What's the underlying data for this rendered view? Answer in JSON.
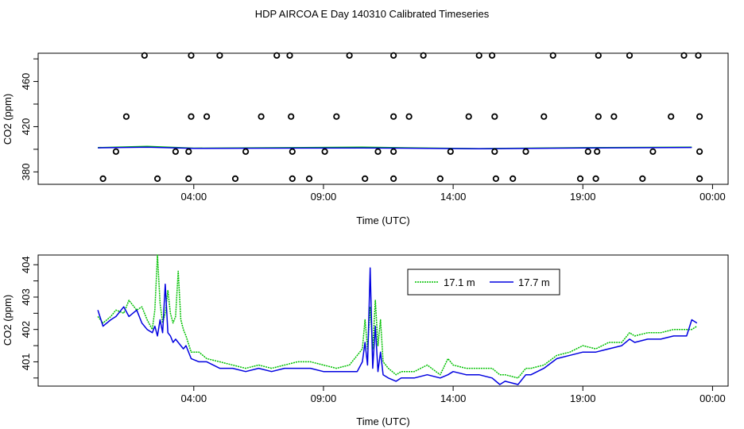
{
  "figure_title": "HDP AIRCOA E  Day 140310  Calibrated Timeseries",
  "colors": {
    "green": "#00c000",
    "blue": "#0000e0",
    "axis": "#000000"
  },
  "chart_data": [
    {
      "type": "scatter",
      "panel": "top",
      "xlabel": "Time (UTC)",
      "ylabel": "CO2 (ppm)",
      "xlim": [
        -2.0,
        24.6
      ],
      "ylim": [
        369,
        485
      ],
      "x_ticks": [
        4,
        9,
        14,
        19,
        24
      ],
      "x_tick_labels": [
        "04:00",
        "09:00",
        "14:00",
        "19:00",
        "00:00"
      ],
      "y_ticks": [
        380,
        420,
        460
      ],
      "y_tick_labels": [
        "380",
        "420",
        "460"
      ],
      "grid": false,
      "points": {
        "x": [
          2.1,
          3.9,
          5.0,
          7.2,
          7.7,
          10.0,
          11.7,
          12.85,
          15.0,
          15.5,
          17.85,
          19.6,
          20.8,
          22.9,
          23.45,
          1.4,
          3.9,
          4.5,
          6.6,
          7.75,
          9.5,
          11.7,
          12.3,
          14.6,
          15.6,
          17.5,
          19.6,
          20.2,
          22.4,
          23.5,
          1.0,
          3.3,
          3.8,
          6.0,
          7.8,
          9.05,
          11.1,
          11.7,
          13.9,
          15.6,
          16.8,
          19.2,
          19.55,
          21.7,
          23.5,
          0.5,
          2.6,
          3.8,
          5.6,
          7.8,
          8.45,
          10.6,
          11.7,
          13.5,
          15.65,
          16.3,
          18.9,
          19.5,
          21.3,
          23.5
        ],
        "y": [
          483,
          483,
          483,
          483,
          483,
          483,
          483,
          483,
          483,
          483,
          483,
          483,
          483,
          483,
          483,
          429,
          429,
          429,
          429,
          429,
          429,
          429,
          429,
          429,
          429,
          429,
          429,
          429,
          429,
          429,
          398,
          398,
          398,
          398,
          398,
          398,
          398,
          398,
          398,
          398,
          398,
          398,
          398,
          398,
          398,
          374,
          374,
          374,
          374,
          374,
          374,
          374,
          374,
          374,
          374,
          374,
          374,
          374,
          374,
          374
        ]
      },
      "series": [
        {
          "color": "#00c000",
          "x": [
            0.3,
            2.2,
            4.0,
            10.5,
            15.0,
            19.0,
            23.2
          ],
          "y": [
            401.5,
            402.5,
            401.0,
            401.8,
            400.6,
            401.4,
            401.8
          ]
        },
        {
          "color": "#0000e0",
          "x": [
            0.3,
            2.2,
            4.0,
            10.5,
            15.0,
            19.0,
            23.2
          ],
          "y": [
            401.3,
            401.8,
            400.8,
            401.2,
            400.5,
            401.2,
            401.6
          ]
        }
      ]
    },
    {
      "type": "line",
      "panel": "bottom",
      "xlabel": "Time (UTC)",
      "ylabel": "CO2 (ppm)",
      "xlim": [
        -2.0,
        24.6
      ],
      "ylim": [
        400.25,
        404.3
      ],
      "x_ticks": [
        4,
        9,
        14,
        19,
        24
      ],
      "x_tick_labels": [
        "04:00",
        "09:00",
        "14:00",
        "19:00",
        "00:00"
      ],
      "y_ticks": [
        401,
        402,
        403,
        404
      ],
      "y_tick_labels": [
        "401",
        "402",
        "403",
        "404"
      ],
      "grid": false,
      "legend_position": "top-right",
      "series": [
        {
          "name": "17.1 m",
          "color": "#00c000",
          "x": [
            0.3,
            0.5,
            0.8,
            1.0,
            1.3,
            1.5,
            1.8,
            2.0,
            2.2,
            2.4,
            2.5,
            2.6,
            2.7,
            2.8,
            2.9,
            3.0,
            3.1,
            3.2,
            3.3,
            3.4,
            3.5,
            3.6,
            3.7,
            3.9,
            4.2,
            4.5,
            5.0,
            5.5,
            6.0,
            6.5,
            7.0,
            7.5,
            8.0,
            8.5,
            9.0,
            9.5,
            10.0,
            10.3,
            10.5,
            10.6,
            10.7,
            10.8,
            10.9,
            11.0,
            11.1,
            11.2,
            11.3,
            11.5,
            11.8,
            12.0,
            12.5,
            13.0,
            13.5,
            13.8,
            14.0,
            14.5,
            15.0,
            15.5,
            15.8,
            16.0,
            16.5,
            16.8,
            17.0,
            17.5,
            18.0,
            18.5,
            19.0,
            19.5,
            20.0,
            20.5,
            20.8,
            21.0,
            21.5,
            22.0,
            22.5,
            23.0,
            23.2,
            23.4
          ],
          "y": [
            402.4,
            402.2,
            402.4,
            402.6,
            402.5,
            402.9,
            402.6,
            402.7,
            402.3,
            402.0,
            402.6,
            404.3,
            402.8,
            402.2,
            402.5,
            403.2,
            402.5,
            402.2,
            402.4,
            403.8,
            402.3,
            402.0,
            401.8,
            401.3,
            401.3,
            401.1,
            401.0,
            400.9,
            400.8,
            400.9,
            400.8,
            400.9,
            401.0,
            401.0,
            400.9,
            400.8,
            400.9,
            401.2,
            401.4,
            402.3,
            401.4,
            402.7,
            401.4,
            402.9,
            401.5,
            402.3,
            401.0,
            400.8,
            400.6,
            400.7,
            400.7,
            400.9,
            400.6,
            401.1,
            400.9,
            400.8,
            400.8,
            400.8,
            400.6,
            400.6,
            400.5,
            400.8,
            400.8,
            400.9,
            401.2,
            401.3,
            401.5,
            401.4,
            401.6,
            401.6,
            401.9,
            401.8,
            401.9,
            401.9,
            402.0,
            402.0,
            402.0,
            402.1
          ]
        },
        {
          "name": "17.7 m",
          "color": "#0000e0",
          "x": [
            0.3,
            0.5,
            0.8,
            1.0,
            1.3,
            1.5,
            1.8,
            2.0,
            2.2,
            2.4,
            2.5,
            2.6,
            2.7,
            2.8,
            2.9,
            3.0,
            3.1,
            3.2,
            3.3,
            3.4,
            3.5,
            3.6,
            3.7,
            3.9,
            4.2,
            4.5,
            5.0,
            5.5,
            6.0,
            6.5,
            7.0,
            7.5,
            8.0,
            8.5,
            9.0,
            9.5,
            10.0,
            10.3,
            10.5,
            10.6,
            10.7,
            10.8,
            10.9,
            11.0,
            11.1,
            11.2,
            11.3,
            11.5,
            11.8,
            12.0,
            12.5,
            13.0,
            13.5,
            13.8,
            14.0,
            14.5,
            15.0,
            15.5,
            15.8,
            16.0,
            16.5,
            16.8,
            17.0,
            17.5,
            18.0,
            18.5,
            19.0,
            19.5,
            20.0,
            20.5,
            20.8,
            21.0,
            21.5,
            22.0,
            22.5,
            23.0,
            23.2,
            23.4
          ],
          "y": [
            402.6,
            402.1,
            402.3,
            402.4,
            402.7,
            402.4,
            402.6,
            402.2,
            402.0,
            401.9,
            402.1,
            401.8,
            402.3,
            401.9,
            403.4,
            401.9,
            401.8,
            401.6,
            401.7,
            401.6,
            401.5,
            401.4,
            401.5,
            401.1,
            401.0,
            401.0,
            400.8,
            400.8,
            400.7,
            400.8,
            400.7,
            400.8,
            400.8,
            400.8,
            400.7,
            400.7,
            400.7,
            400.7,
            401.0,
            401.6,
            400.9,
            403.9,
            400.8,
            402.1,
            400.7,
            401.3,
            400.6,
            400.5,
            400.4,
            400.5,
            400.5,
            400.6,
            400.5,
            400.6,
            400.7,
            400.6,
            400.6,
            400.5,
            400.3,
            400.4,
            400.3,
            400.6,
            400.6,
            400.8,
            401.1,
            401.2,
            401.3,
            401.3,
            401.4,
            401.5,
            401.7,
            401.6,
            401.7,
            401.7,
            401.8,
            401.8,
            402.3,
            402.2
          ]
        }
      ]
    }
  ]
}
